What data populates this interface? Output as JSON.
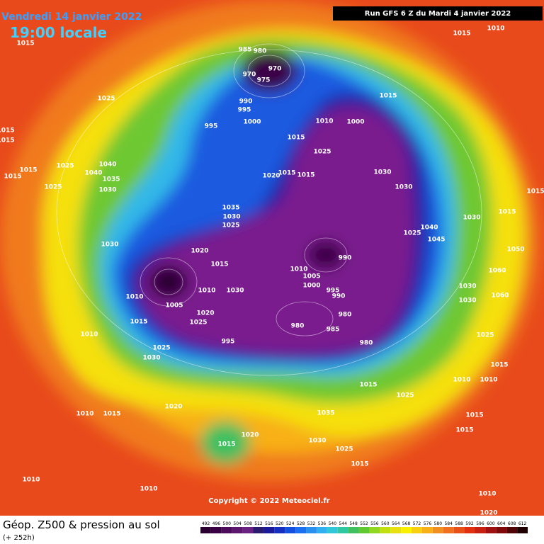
{
  "header": {
    "date": "Vendredi 14 janvier 2022",
    "time": "19:00 locale",
    "run": "Run GFS 6 Z du Mardi 4 janvier 2022"
  },
  "footer": {
    "title": "Géop. Z500 & pression au sol",
    "lead": "(+ 252h)",
    "copyright": "Copyright © 2022 Meteociel.fr"
  },
  "colorbar": {
    "ticks": [
      492,
      496,
      500,
      504,
      508,
      512,
      516,
      520,
      524,
      528,
      532,
      536,
      540,
      544,
      548,
      552,
      556,
      560,
      564,
      568,
      572,
      576,
      580,
      584,
      588,
      592,
      596,
      600,
      604,
      608,
      612
    ],
    "colors": [
      "#2a0030",
      "#3a0044",
      "#4c0a5a",
      "#5c1670",
      "#6a2282",
      "#2a1a70",
      "#1a1a9a",
      "#1530c0",
      "#1450e0",
      "#1a70f0",
      "#2a90f0",
      "#30b0ee",
      "#30c8d8",
      "#30c8a0",
      "#40c060",
      "#60c830",
      "#90d820",
      "#c0e010",
      "#e8e010",
      "#f8f000",
      "#f8d010",
      "#f8b018",
      "#f09020",
      "#f07020",
      "#e85018",
      "#e03010",
      "#c82010",
      "#a01010",
      "#800808",
      "#500404",
      "#200000"
    ]
  },
  "isobar_labels": [
    1015,
    1010,
    1015,
    985,
    980,
    970,
    970,
    975,
    1025,
    990,
    995,
    1015,
    1000,
    995,
    1010,
    1000,
    1015,
    1015,
    1015,
    1025,
    1025,
    1040,
    1015,
    1040,
    1035,
    1015,
    1020,
    1015,
    1015,
    1030,
    1025,
    1030,
    1030,
    1015,
    1035,
    1030,
    1015,
    1030,
    1025,
    1040,
    1025,
    1030,
    1020,
    1045,
    990,
    1015,
    1010,
    1050,
    1005,
    1000,
    1060,
    1030,
    1010,
    1010,
    1030,
    995,
    990,
    1060,
    1030,
    1005,
    1020,
    980,
    1015,
    1025,
    980,
    985,
    1010,
    1025,
    995,
    980,
    1025,
    1030,
    1015,
    1015,
    1010,
    1010,
    1025,
    1020,
    1035,
    1010,
    1015,
    1015,
    1015,
    1020,
    1030,
    1015,
    1025,
    1015,
    1010,
    1010,
    1010,
    1020
  ]
}
